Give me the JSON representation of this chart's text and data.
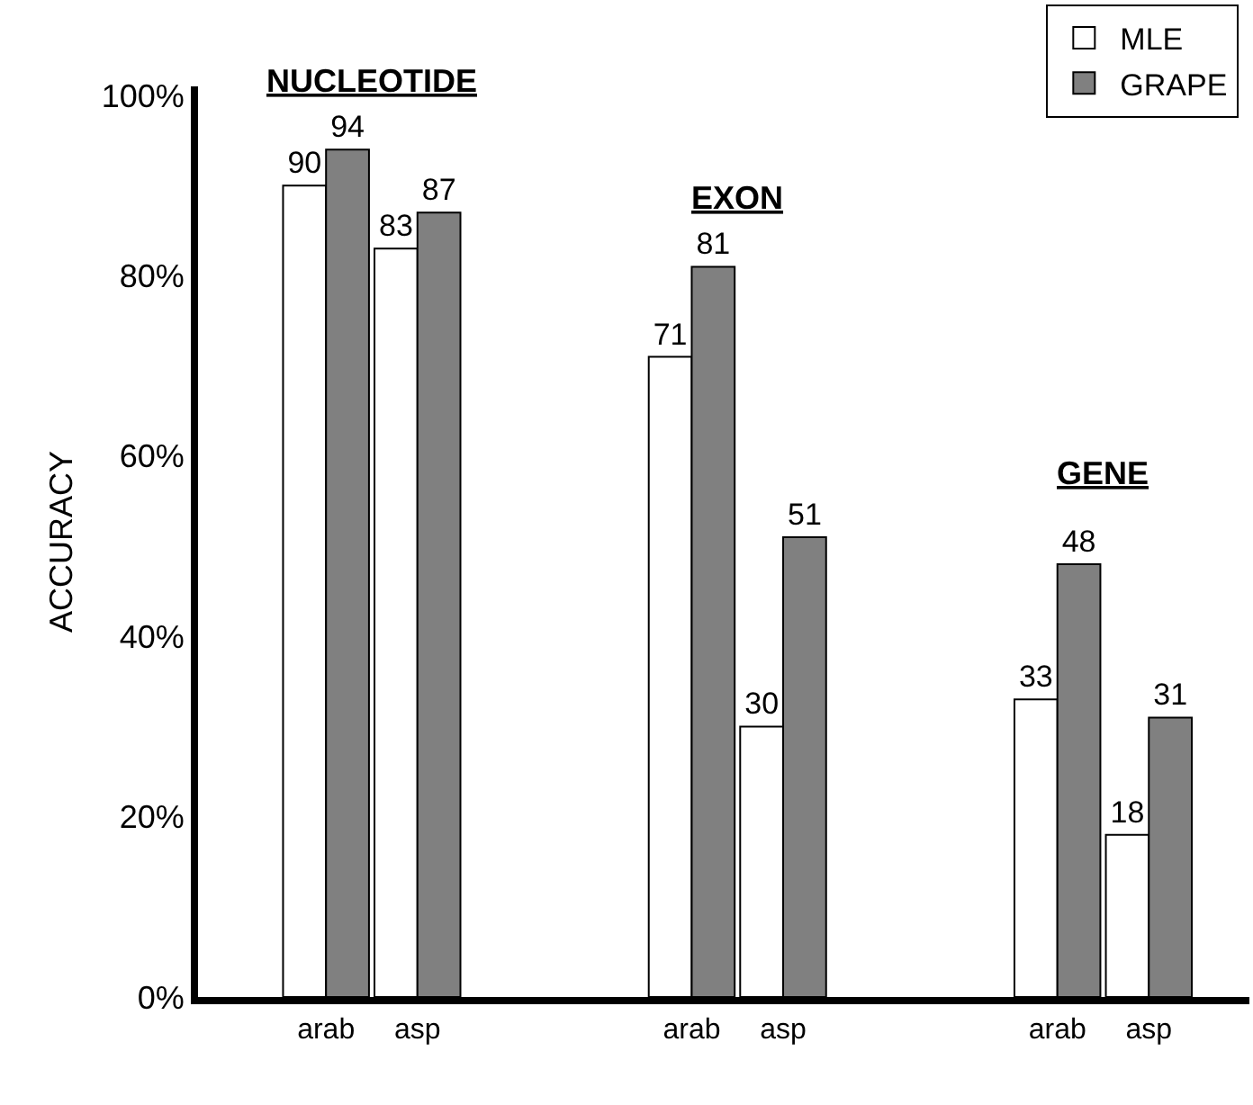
{
  "chart_data": {
    "type": "bar",
    "ylabel": "ACCURACY",
    "categories": [
      "arab",
      "asp",
      null,
      null,
      "arab",
      "asp",
      null,
      null,
      "arab",
      "asp"
    ],
    "series": [
      {
        "name": "MLE",
        "color": "#ffffff",
        "values": [
          90,
          83,
          null,
          null,
          71,
          30,
          null,
          null,
          33,
          18
        ]
      },
      {
        "name": "GRAPE",
        "color": "#808080",
        "values": [
          94,
          87,
          null,
          null,
          81,
          51,
          null,
          null,
          48,
          31
        ]
      }
    ],
    "annotations": [
      "NUCLEOTIDE",
      "EXON",
      "GENE"
    ],
    "ylim": [
      0,
      101
    ],
    "yticks": [
      {
        "value": 0,
        "label": "0%"
      },
      {
        "value": 20,
        "label": "20%"
      },
      {
        "value": 40,
        "label": "40%"
      },
      {
        "value": 60,
        "label": "60%"
      },
      {
        "value": 80,
        "label": "80%"
      },
      {
        "value": 100,
        "label": "100%"
      }
    ],
    "data_labels": true,
    "grid": false,
    "legend": "top right"
  }
}
